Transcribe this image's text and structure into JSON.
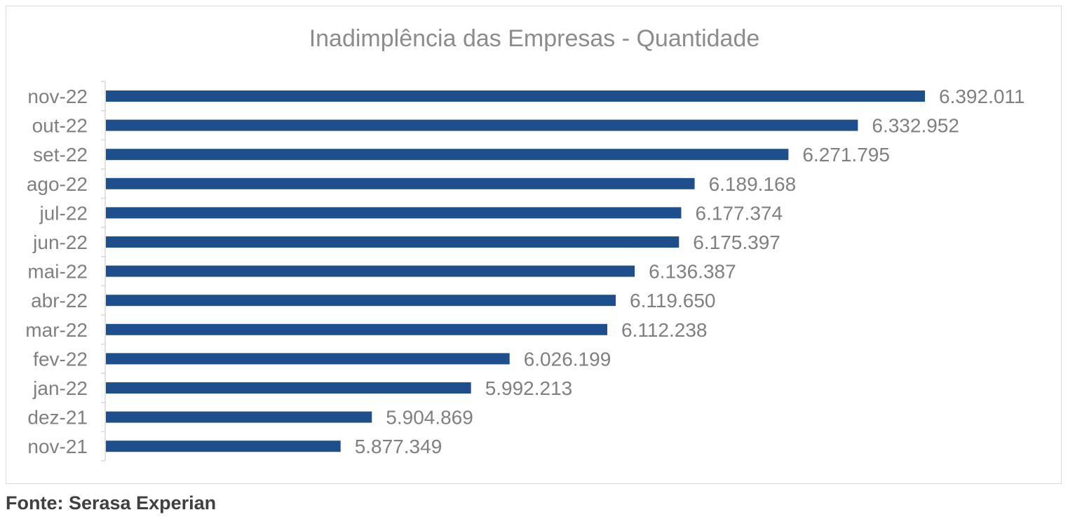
{
  "chart_data": {
    "type": "bar",
    "orientation": "horizontal",
    "title": "Inadimplência das Empresas - Quantidade",
    "categories": [
      "nov-22",
      "out-22",
      "set-22",
      "ago-22",
      "jul-22",
      "jun-22",
      "mai-22",
      "abr-22",
      "mar-22",
      "fev-22",
      "jan-22",
      "dez-21",
      "nov-21"
    ],
    "values": [
      6392011,
      6332952,
      6271795,
      6189168,
      6177374,
      6175397,
      6136387,
      6119650,
      6112238,
      6026199,
      5992213,
      5904869,
      5877349
    ],
    "value_labels": [
      "6.392.011",
      "6.332.952",
      "6.271.795",
      "6.189.168",
      "6.177.374",
      "6.175.397",
      "6.136.387",
      "6.119.650",
      "6.112.238",
      "6.026.199",
      "5.992.213",
      "5.904.869",
      "5.877.349"
    ],
    "xlim": [
      5670000,
      6392011
    ],
    "grid": false,
    "legend": "none",
    "bar_color": "#1f4e8c",
    "label_color": "#808080"
  },
  "source": "Fonte: Serasa Experian"
}
